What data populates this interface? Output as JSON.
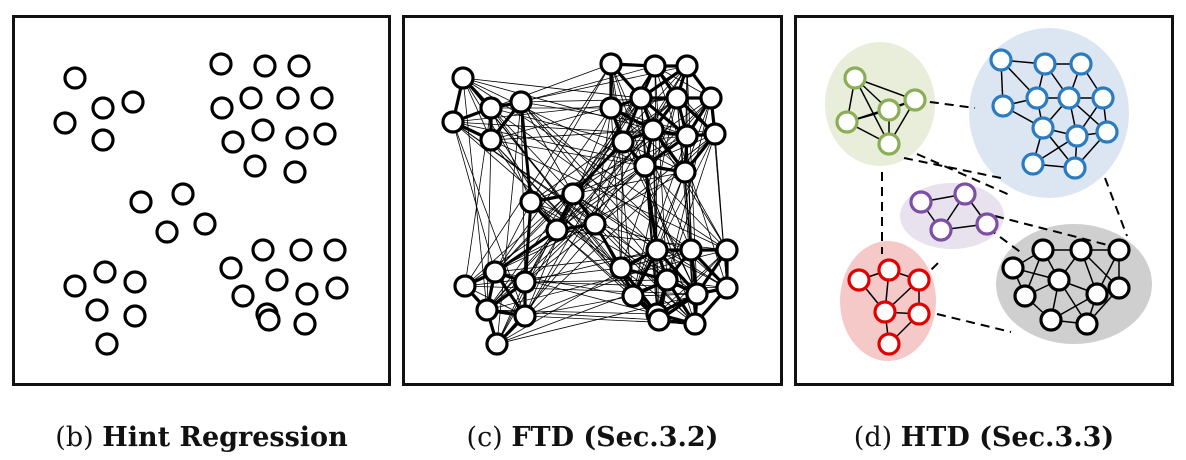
{
  "panels": [
    {
      "label": "(b)",
      "title": "Hint Regression"
    },
    {
      "label": "(c)",
      "title": "FTD (Sec.3.2)"
    },
    {
      "label": "(d)",
      "title": "HTD (Sec.3.3)"
    }
  ],
  "colors": {
    "border": "#111111",
    "node_stroke": "#000000",
    "green_group": "#8aad55",
    "green_bg": "#e8eed9",
    "blue_group": "#2b7bc0",
    "blue_bg": "#dce6f3",
    "purple_group": "#7d4ea6",
    "purple_bg": "#e8e1ee",
    "red_group": "#e00000",
    "red_bg": "#f6c9c9",
    "black_bg": "#cfcfcf"
  }
}
